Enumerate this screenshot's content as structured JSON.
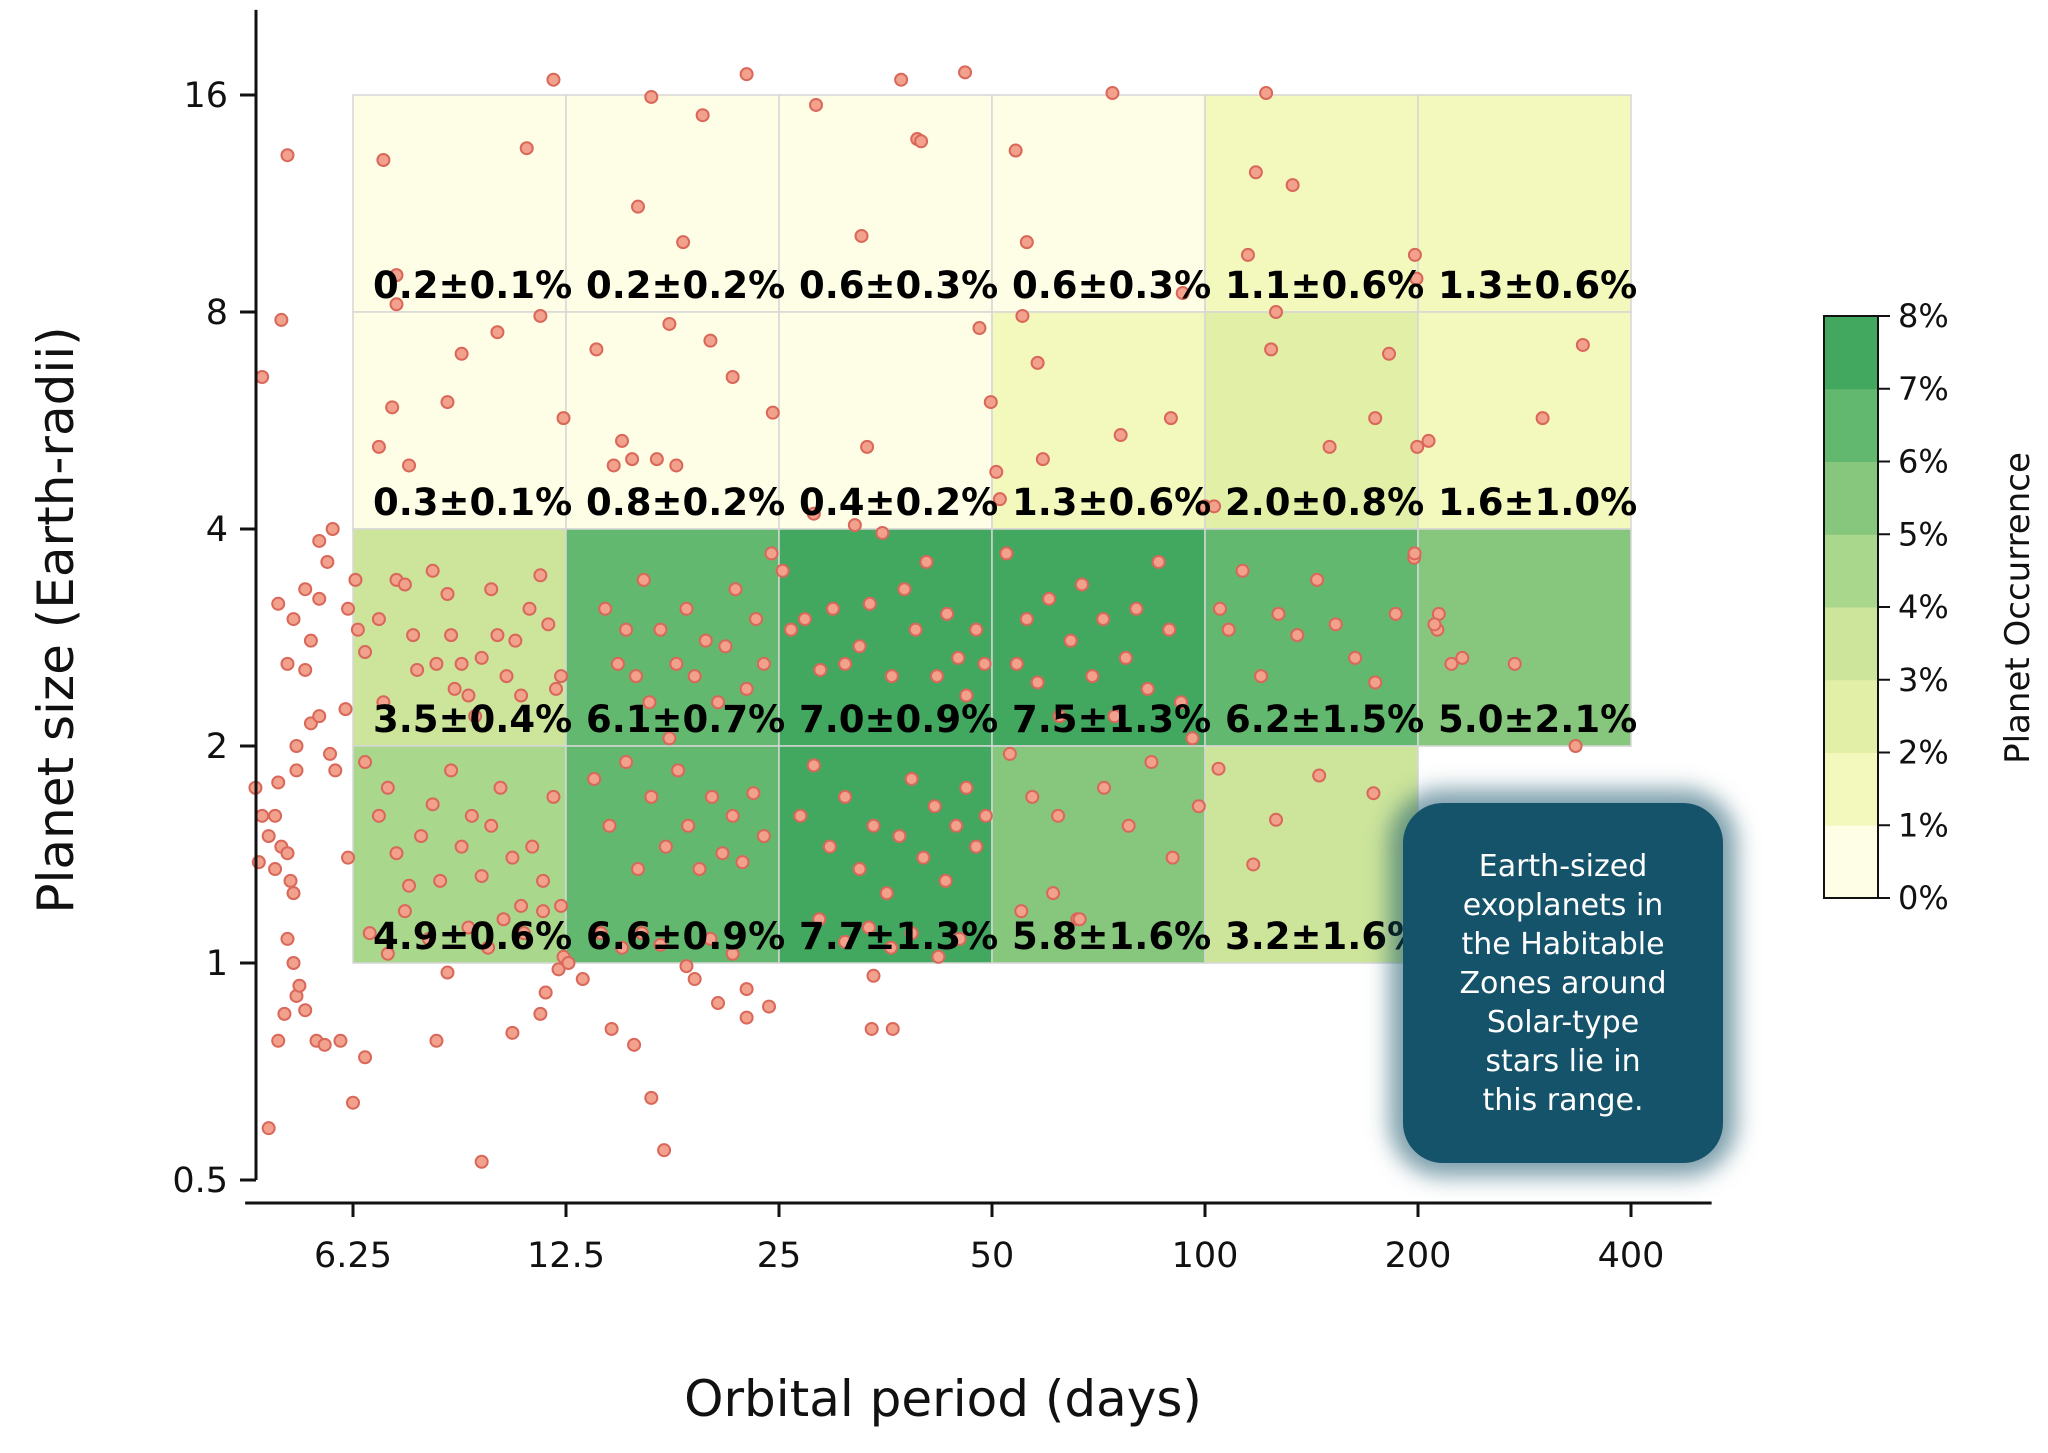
{
  "chart_data": {
    "type": "heatmap",
    "xlabel": "Orbital period (days)",
    "ylabel": "Planet size (Earth-radii)",
    "x_scale": "log2",
    "y_scale": "log2",
    "xlim": [
      4.4,
      520
    ],
    "ylim": [
      0.5,
      21
    ],
    "x_ticks": [
      6.25,
      12.5,
      25,
      50,
      100,
      200,
      400
    ],
    "y_ticks": [
      0.5,
      1,
      2,
      4,
      8,
      16
    ],
    "x_edges": [
      6.25,
      12.5,
      25,
      50,
      100,
      200,
      400
    ],
    "y_edges": [
      1,
      2,
      4,
      8,
      16
    ],
    "cells": [
      {
        "x": [
          6.25,
          12.5
        ],
        "y": [
          8,
          16
        ],
        "value": 0.2,
        "label": "0.2±0.1%"
      },
      {
        "x": [
          12.5,
          25
        ],
        "y": [
          8,
          16
        ],
        "value": 0.2,
        "label": "0.2±0.2%"
      },
      {
        "x": [
          25,
          50
        ],
        "y": [
          8,
          16
        ],
        "value": 0.6,
        "label": "0.6±0.3%"
      },
      {
        "x": [
          50,
          100
        ],
        "y": [
          8,
          16
        ],
        "value": 0.6,
        "label": "0.6±0.3%"
      },
      {
        "x": [
          100,
          200
        ],
        "y": [
          8,
          16
        ],
        "value": 1.1,
        "label": "1.1±0.6%"
      },
      {
        "x": [
          200,
          400
        ],
        "y": [
          8,
          16
        ],
        "value": 1.3,
        "label": "1.3±0.6%"
      },
      {
        "x": [
          6.25,
          12.5
        ],
        "y": [
          4,
          8
        ],
        "value": 0.3,
        "label": "0.3±0.1%"
      },
      {
        "x": [
          12.5,
          25
        ],
        "y": [
          4,
          8
        ],
        "value": 0.8,
        "label": "0.8±0.2%"
      },
      {
        "x": [
          25,
          50
        ],
        "y": [
          4,
          8
        ],
        "value": 0.4,
        "label": "0.4±0.2%"
      },
      {
        "x": [
          50,
          100
        ],
        "y": [
          4,
          8
        ],
        "value": 1.3,
        "label": "1.3±0.6%"
      },
      {
        "x": [
          100,
          200
        ],
        "y": [
          4,
          8
        ],
        "value": 2.0,
        "label": "2.0±0.8%"
      },
      {
        "x": [
          200,
          400
        ],
        "y": [
          4,
          8
        ],
        "value": 1.6,
        "label": "1.6±1.0%"
      },
      {
        "x": [
          6.25,
          12.5
        ],
        "y": [
          2,
          4
        ],
        "value": 3.5,
        "label": "3.5±0.4%"
      },
      {
        "x": [
          12.5,
          25
        ],
        "y": [
          2,
          4
        ],
        "value": 6.1,
        "label": "6.1±0.7%"
      },
      {
        "x": [
          25,
          50
        ],
        "y": [
          2,
          4
        ],
        "value": 7.0,
        "label": "7.0±0.9%"
      },
      {
        "x": [
          50,
          100
        ],
        "y": [
          2,
          4
        ],
        "value": 7.5,
        "label": "7.5±1.3%"
      },
      {
        "x": [
          100,
          200
        ],
        "y": [
          2,
          4
        ],
        "value": 6.2,
        "label": "6.2±1.5%"
      },
      {
        "x": [
          200,
          400
        ],
        "y": [
          2,
          4
        ],
        "value": 5.0,
        "label": "5.0±2.1%"
      },
      {
        "x": [
          6.25,
          12.5
        ],
        "y": [
          1,
          2
        ],
        "value": 4.9,
        "label": "4.9±0.6%"
      },
      {
        "x": [
          12.5,
          25
        ],
        "y": [
          1,
          2
        ],
        "value": 6.6,
        "label": "6.6±0.9%"
      },
      {
        "x": [
          25,
          50
        ],
        "y": [
          1,
          2
        ],
        "value": 7.7,
        "label": "7.7±1.3%"
      },
      {
        "x": [
          50,
          100
        ],
        "y": [
          1,
          2
        ],
        "value": 5.8,
        "label": "5.8±1.6%"
      },
      {
        "x": [
          100,
          200
        ],
        "y": [
          1,
          2
        ],
        "value": 3.2,
        "label": "3.2±1.6%"
      }
    ],
    "colorbar": {
      "title": "Planet Occurrence",
      "ticks": [
        "0%",
        "1%",
        "2%",
        "3%",
        "4%",
        "5%",
        "6%",
        "7%",
        "8%"
      ],
      "range": [
        0,
        8
      ],
      "colors": [
        "#fefee6",
        "#f3f8bd",
        "#e2efa6",
        "#cce59b",
        "#a9d88c",
        "#86c67d",
        "#62b86e",
        "#42a860"
      ]
    },
    "points": [
      [
        4.65,
        6.5
      ],
      [
        5.05,
        13.2
      ],
      [
        4.95,
        7.8
      ],
      [
        4.55,
        1.75
      ],
      [
        4.6,
        1.38
      ],
      [
        4.65,
        1.6
      ],
      [
        4.75,
        1.5
      ],
      [
        4.85,
        1.35
      ],
      [
        4.85,
        1.6
      ],
      [
        4.9,
        1.78
      ],
      [
        4.95,
        1.45
      ],
      [
        5.05,
        1.42
      ],
      [
        5.1,
        1.3
      ],
      [
        5.15,
        1.25
      ],
      [
        5.2,
        1.85
      ],
      [
        5.05,
        1.08
      ],
      [
        5.15,
        1.0
      ],
      [
        5.2,
        0.9
      ],
      [
        5.0,
        0.85
      ],
      [
        4.9,
        0.78
      ],
      [
        4.75,
        0.59
      ],
      [
        5.25,
        0.93
      ],
      [
        5.35,
        0.86
      ],
      [
        5.55,
        0.78
      ],
      [
        5.7,
        0.77
      ],
      [
        4.9,
        3.15
      ],
      [
        5.05,
        2.6
      ],
      [
        5.2,
        2.0
      ],
      [
        5.15,
        3.0
      ],
      [
        5.35,
        2.55
      ],
      [
        5.35,
        3.3
      ],
      [
        5.45,
        2.8
      ],
      [
        5.6,
        3.2
      ],
      [
        5.6,
        3.85
      ],
      [
        5.85,
        4.0
      ],
      [
        5.75,
        3.6
      ],
      [
        5.45,
        2.15
      ],
      [
        5.6,
        2.2
      ],
      [
        5.8,
        1.95
      ],
      [
        5.9,
        1.85
      ],
      [
        6.1,
        2.25
      ],
      [
        6.15,
        3.1
      ],
      [
        6.15,
        1.4
      ],
      [
        6.3,
        3.4
      ],
      [
        6.35,
        2.9
      ],
      [
        6.5,
        2.7
      ],
      [
        6.8,
        3.0
      ],
      [
        6.9,
        2.3
      ],
      [
        7.2,
        3.4
      ],
      [
        7.4,
        3.35
      ],
      [
        7.6,
        2.85
      ],
      [
        7.7,
        2.55
      ],
      [
        8.1,
        3.5
      ],
      [
        8.2,
        2.6
      ],
      [
        8.5,
        3.25
      ],
      [
        8.6,
        2.85
      ],
      [
        8.7,
        2.4
      ],
      [
        8.9,
        2.6
      ],
      [
        9.1,
        2.35
      ],
      [
        9.3,
        2.2
      ],
      [
        9.5,
        2.65
      ],
      [
        9.8,
        3.3
      ],
      [
        10.0,
        2.85
      ],
      [
        10.3,
        2.5
      ],
      [
        10.6,
        2.8
      ],
      [
        10.8,
        2.35
      ],
      [
        11.1,
        3.1
      ],
      [
        11.5,
        3.45
      ],
      [
        11.8,
        2.95
      ],
      [
        12.1,
        2.4
      ],
      [
        12.3,
        2.5
      ],
      [
        6.5,
        1.9
      ],
      [
        6.8,
        1.6
      ],
      [
        7.0,
        1.75
      ],
      [
        7.2,
        1.42
      ],
      [
        7.5,
        1.28
      ],
      [
        7.8,
        1.5
      ],
      [
        8.1,
        1.66
      ],
      [
        8.3,
        1.3
      ],
      [
        8.6,
        1.85
      ],
      [
        8.9,
        1.45
      ],
      [
        9.2,
        1.6
      ],
      [
        9.5,
        1.32
      ],
      [
        9.8,
        1.55
      ],
      [
        10.1,
        1.75
      ],
      [
        10.5,
        1.4
      ],
      [
        10.8,
        1.2
      ],
      [
        11.2,
        1.45
      ],
      [
        11.6,
        1.3
      ],
      [
        12.0,
        1.7
      ],
      [
        12.3,
        1.2
      ],
      [
        6.6,
        1.1
      ],
      [
        7.0,
        1.03
      ],
      [
        7.4,
        1.18
      ],
      [
        8.0,
        1.08
      ],
      [
        8.5,
        0.97
      ],
      [
        9.1,
        1.12
      ],
      [
        9.7,
        1.05
      ],
      [
        10.2,
        1.15
      ],
      [
        10.9,
        1.1
      ],
      [
        11.6,
        1.18
      ],
      [
        12.2,
        0.98
      ],
      [
        12.4,
        1.02
      ],
      [
        6.0,
        0.78
      ],
      [
        6.25,
        0.64
      ],
      [
        6.5,
        0.74
      ],
      [
        8.2,
        0.78
      ],
      [
        9.5,
        0.53
      ],
      [
        10.5,
        0.8
      ],
      [
        11.5,
        0.85
      ],
      [
        11.7,
        0.91
      ],
      [
        12.6,
        1.0
      ],
      [
        6.9,
        13.0
      ],
      [
        7.2,
        9.0
      ],
      [
        7.2,
        8.2
      ],
      [
        7.1,
        5.9
      ],
      [
        6.8,
        5.2
      ],
      [
        7.5,
        4.9
      ],
      [
        8.5,
        6.0
      ],
      [
        8.9,
        7.0
      ],
      [
        10.0,
        7.5
      ],
      [
        11.0,
        13.5
      ],
      [
        11.5,
        7.9
      ],
      [
        12.0,
        16.8
      ],
      [
        12.4,
        5.7
      ],
      [
        13.8,
        7.1
      ],
      [
        14.2,
        3.1
      ],
      [
        14.8,
        2.6
      ],
      [
        15.2,
        2.9
      ],
      [
        15.7,
        2.5
      ],
      [
        16.1,
        3.4
      ],
      [
        16.4,
        2.3
      ],
      [
        17.0,
        2.9
      ],
      [
        17.5,
        2.05
      ],
      [
        17.9,
        2.6
      ],
      [
        18.5,
        3.1
      ],
      [
        19.0,
        2.5
      ],
      [
        19.7,
        2.8
      ],
      [
        20.5,
        2.3
      ],
      [
        21.0,
        2.75
      ],
      [
        21.7,
        3.3
      ],
      [
        22.5,
        2.4
      ],
      [
        23.2,
        3.0
      ],
      [
        23.8,
        2.6
      ],
      [
        24.4,
        3.7
      ],
      [
        13.7,
        1.8
      ],
      [
        14.4,
        1.55
      ],
      [
        15.2,
        1.9
      ],
      [
        15.8,
        1.35
      ],
      [
        16.5,
        1.7
      ],
      [
        17.3,
        1.45
      ],
      [
        18.0,
        1.85
      ],
      [
        18.6,
        1.55
      ],
      [
        19.3,
        1.35
      ],
      [
        20.1,
        1.7
      ],
      [
        20.8,
        1.42
      ],
      [
        21.5,
        1.6
      ],
      [
        22.2,
        1.38
      ],
      [
        23.0,
        1.72
      ],
      [
        23.8,
        1.5
      ],
      [
        14.0,
        1.1
      ],
      [
        15.0,
        1.05
      ],
      [
        16.0,
        1.1
      ],
      [
        17.0,
        1.06
      ],
      [
        18.5,
        0.99
      ],
      [
        20.0,
        1.08
      ],
      [
        21.5,
        1.03
      ],
      [
        22.5,
        0.92
      ],
      [
        13.2,
        0.95
      ],
      [
        14.5,
        0.81
      ],
      [
        15.6,
        0.77
      ],
      [
        16.5,
        0.65
      ],
      [
        17.2,
        0.55
      ],
      [
        19.0,
        0.95
      ],
      [
        20.5,
        0.88
      ],
      [
        22.5,
        0.84
      ],
      [
        24.2,
        0.87
      ],
      [
        15.8,
        11.2
      ],
      [
        16.5,
        15.9
      ],
      [
        17.5,
        7.7
      ],
      [
        18.3,
        10.0
      ],
      [
        19.5,
        15.0
      ],
      [
        20.0,
        7.3
      ],
      [
        21.5,
        6.5
      ],
      [
        22.5,
        17.1
      ],
      [
        24.5,
        5.8
      ],
      [
        15.0,
        5.3
      ],
      [
        15.5,
        5.0
      ],
      [
        16.8,
        5.0
      ],
      [
        14.6,
        4.9
      ],
      [
        17.9,
        4.9
      ],
      [
        25.3,
        3.5
      ],
      [
        26.0,
        2.9
      ],
      [
        27.2,
        3.0
      ],
      [
        28.6,
        2.55
      ],
      [
        29.8,
        3.1
      ],
      [
        31.0,
        2.6
      ],
      [
        32.5,
        2.75
      ],
      [
        33.6,
        3.15
      ],
      [
        35.0,
        3.95
      ],
      [
        36.1,
        2.5
      ],
      [
        37.6,
        3.3
      ],
      [
        39.0,
        2.9
      ],
      [
        40.4,
        3.6
      ],
      [
        41.8,
        2.5
      ],
      [
        43.2,
        3.05
      ],
      [
        44.8,
        2.65
      ],
      [
        46.0,
        2.35
      ],
      [
        47.5,
        2.9
      ],
      [
        48.8,
        2.6
      ],
      [
        26.8,
        1.6
      ],
      [
        28.0,
        1.88
      ],
      [
        29.5,
        1.45
      ],
      [
        31.0,
        1.7
      ],
      [
        32.5,
        1.35
      ],
      [
        34.0,
        1.55
      ],
      [
        35.5,
        1.25
      ],
      [
        37.0,
        1.5
      ],
      [
        38.5,
        1.8
      ],
      [
        40.0,
        1.4
      ],
      [
        41.5,
        1.65
      ],
      [
        43.0,
        1.3
      ],
      [
        44.5,
        1.55
      ],
      [
        46.0,
        1.75
      ],
      [
        47.5,
        1.45
      ],
      [
        49.0,
        1.6
      ],
      [
        28.5,
        1.15
      ],
      [
        31.0,
        1.07
      ],
      [
        33.5,
        1.12
      ],
      [
        36.0,
        1.05
      ],
      [
        38.5,
        1.1
      ],
      [
        42.0,
        1.02
      ],
      [
        45.0,
        1.08
      ],
      [
        34.0,
        0.96
      ],
      [
        33.8,
        0.81
      ],
      [
        36.2,
        0.81
      ],
      [
        28.2,
        15.5
      ],
      [
        32.7,
        10.2
      ],
      [
        39.2,
        13.9
      ],
      [
        39.7,
        13.8
      ],
      [
        37.2,
        16.8
      ],
      [
        45.8,
        17.2
      ],
      [
        48.0,
        7.6
      ],
      [
        33.3,
        5.2
      ],
      [
        49.8,
        6.0
      ],
      [
        28.0,
        4.2
      ],
      [
        32.0,
        4.05
      ],
      [
        50.7,
        4.8
      ],
      [
        52.4,
        3.7
      ],
      [
        54.2,
        2.6
      ],
      [
        56.0,
        3.0
      ],
      [
        58.0,
        2.45
      ],
      [
        60.2,
        3.2
      ],
      [
        62.3,
        2.2
      ],
      [
        64.6,
        2.8
      ],
      [
        67.0,
        3.35
      ],
      [
        69.3,
        2.5
      ],
      [
        71.8,
        3.0
      ],
      [
        74.5,
        2.2
      ],
      [
        77.3,
        2.65
      ],
      [
        80.0,
        3.1
      ],
      [
        83.0,
        2.4
      ],
      [
        86.0,
        3.6
      ],
      [
        89.0,
        2.9
      ],
      [
        92.5,
        2.3
      ],
      [
        96.0,
        2.05
      ],
      [
        53.0,
        1.95
      ],
      [
        57.0,
        1.7
      ],
      [
        62.0,
        1.6
      ],
      [
        66.0,
        1.15
      ],
      [
        72.0,
        1.75
      ],
      [
        78.0,
        1.55
      ],
      [
        84.0,
        1.9
      ],
      [
        90.0,
        1.4
      ],
      [
        98.0,
        1.65
      ],
      [
        55.0,
        1.18
      ],
      [
        61.0,
        1.25
      ],
      [
        66.5,
        1.15
      ],
      [
        56.0,
        10.0
      ],
      [
        54.0,
        13.4
      ],
      [
        55.2,
        7.9
      ],
      [
        58.0,
        6.8
      ],
      [
        59.0,
        5.0
      ],
      [
        76.0,
        5.4
      ],
      [
        89.5,
        5.7
      ],
      [
        74.0,
        16.1
      ],
      [
        93.0,
        8.5
      ],
      [
        51.3,
        4.4
      ],
      [
        100.0,
        4.3
      ],
      [
        103.0,
        4.3
      ],
      [
        105.0,
        3.1
      ],
      [
        108.0,
        2.9
      ],
      [
        113.0,
        3.5
      ],
      [
        120.0,
        2.5
      ],
      [
        127.0,
        3.05
      ],
      [
        135.0,
        2.85
      ],
      [
        144.0,
        3.4
      ],
      [
        153.0,
        2.95
      ],
      [
        163.0,
        2.65
      ],
      [
        174.0,
        2.45
      ],
      [
        186.0,
        3.05
      ],
      [
        197.5,
        3.65
      ],
      [
        104.5,
        1.86
      ],
      [
        117.0,
        1.37
      ],
      [
        126.0,
        1.58
      ],
      [
        145.0,
        1.82
      ],
      [
        173.0,
        1.72
      ],
      [
        115.0,
        9.6
      ],
      [
        122.0,
        16.1
      ],
      [
        133.0,
        12.0
      ],
      [
        118.0,
        12.5
      ],
      [
        126.0,
        8.0
      ],
      [
        124.0,
        7.1
      ],
      [
        150.0,
        5.2
      ],
      [
        174.0,
        5.7
      ],
      [
        182.0,
        7.0
      ],
      [
        198.0,
        9.6
      ],
      [
        199.5,
        5.2
      ],
      [
        207.0,
        5.3
      ],
      [
        199.0,
        8.9
      ],
      [
        197.8,
        3.7
      ],
      [
        214.0,
        3.05
      ],
      [
        213.0,
        2.9
      ],
      [
        223.0,
        2.6
      ],
      [
        231.0,
        2.65
      ],
      [
        211.0,
        2.95
      ],
      [
        274.0,
        2.6
      ],
      [
        300.0,
        5.7
      ],
      [
        342.0,
        7.2
      ],
      [
        334.0,
        2.0
      ]
    ],
    "annotation": "Earth-sized\nexoplanets in\nthe Habitable\nZones around\nSolar-type\nstars lie in\nthis range."
  }
}
